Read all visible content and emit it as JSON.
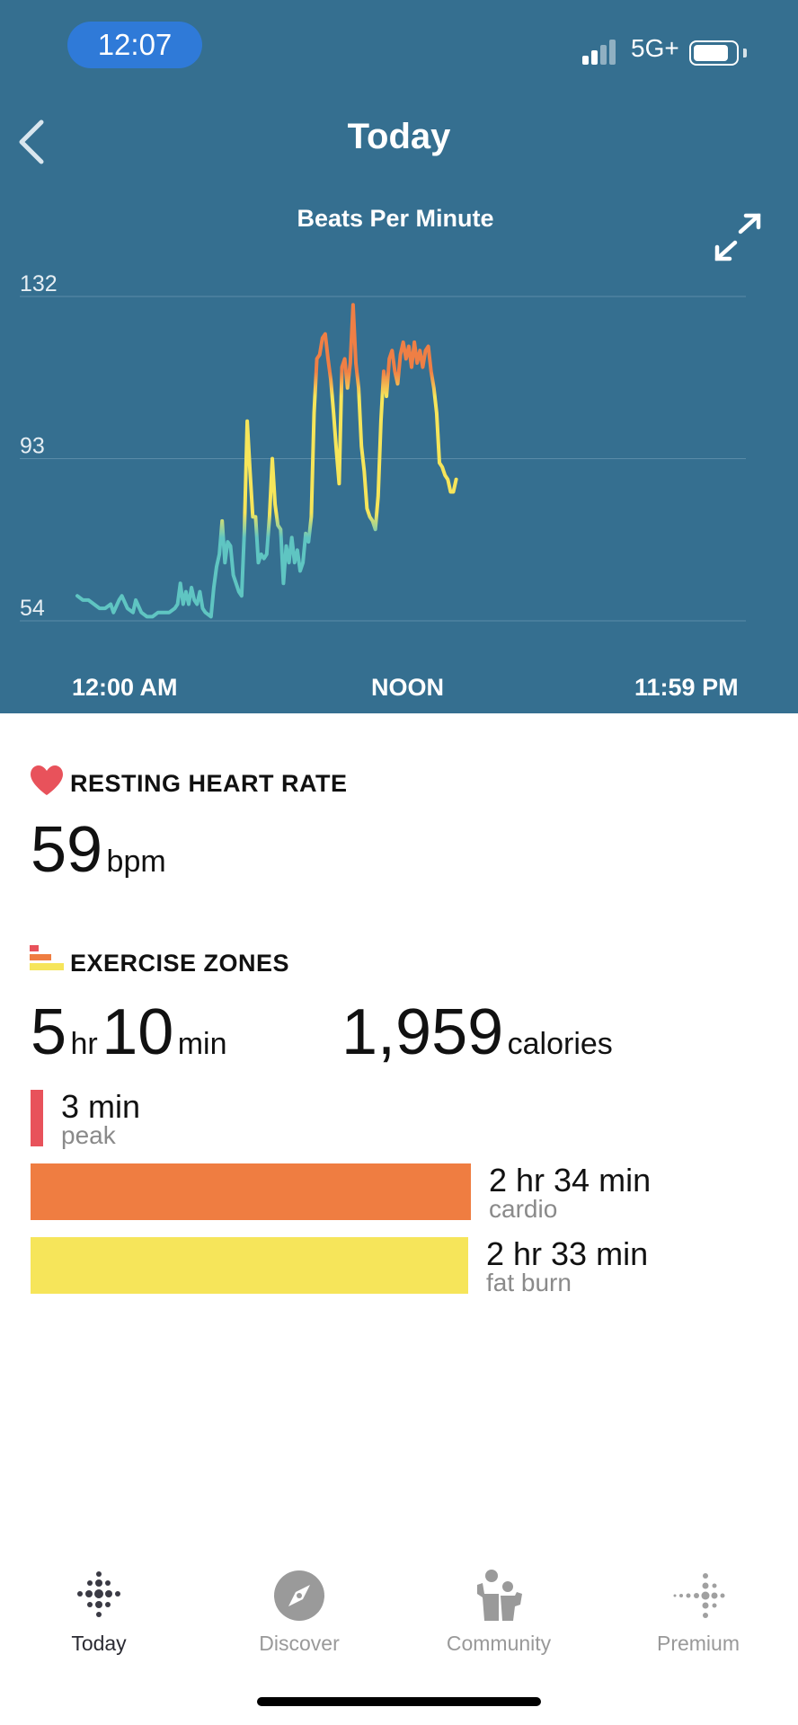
{
  "status_bar": {
    "time": "12:07",
    "network": "5G+"
  },
  "header": {
    "title": "Today"
  },
  "chart_data": {
    "type": "line",
    "title": "Beats Per Minute",
    "x_tick_labels": [
      "12:00 AM",
      "NOON",
      "11:59 PM"
    ],
    "y_ticks": [
      132,
      93,
      54
    ],
    "ylim": [
      54,
      132
    ],
    "x_unit": "hours since 12:00 AM",
    "xlim": [
      0,
      24
    ],
    "grid": true,
    "zone_colors": {
      "resting": "#5fc5c2",
      "fat_burn": "#f6e55a",
      "cardio": "#ef7f45"
    },
    "series": [
      {
        "values": [
          [
            0.0,
            60
          ],
          [
            0.2,
            59
          ],
          [
            0.4,
            59
          ],
          [
            0.6,
            58
          ],
          [
            0.8,
            57
          ],
          [
            1.0,
            57
          ],
          [
            1.2,
            58
          ],
          [
            1.3,
            56
          ],
          [
            1.5,
            59
          ],
          [
            1.6,
            60
          ],
          [
            1.8,
            57
          ],
          [
            2.0,
            56
          ],
          [
            2.1,
            59
          ],
          [
            2.3,
            56
          ],
          [
            2.5,
            55
          ],
          [
            2.7,
            55
          ],
          [
            2.9,
            56
          ],
          [
            3.1,
            56
          ],
          [
            3.3,
            56
          ],
          [
            3.5,
            57
          ],
          [
            3.6,
            58
          ],
          [
            3.7,
            63
          ],
          [
            3.8,
            58
          ],
          [
            3.9,
            61
          ],
          [
            4.0,
            58
          ],
          [
            4.1,
            62
          ],
          [
            4.2,
            59
          ],
          [
            4.3,
            58
          ],
          [
            4.4,
            61
          ],
          [
            4.5,
            57
          ],
          [
            4.6,
            56
          ],
          [
            4.8,
            55
          ],
          [
            4.9,
            62
          ],
          [
            5.0,
            67
          ],
          [
            5.1,
            70
          ],
          [
            5.2,
            78
          ],
          [
            5.3,
            68
          ],
          [
            5.4,
            73
          ],
          [
            5.5,
            72
          ],
          [
            5.6,
            65
          ],
          [
            5.7,
            63
          ],
          [
            5.8,
            61
          ],
          [
            5.9,
            60
          ],
          [
            6.0,
            76
          ],
          [
            6.1,
            102
          ],
          [
            6.2,
            90
          ],
          [
            6.3,
            79
          ],
          [
            6.4,
            79
          ],
          [
            6.5,
            68
          ],
          [
            6.6,
            70
          ],
          [
            6.7,
            69
          ],
          [
            6.8,
            70
          ],
          [
            6.9,
            79
          ],
          [
            7.0,
            93
          ],
          [
            7.1,
            82
          ],
          [
            7.2,
            77
          ],
          [
            7.3,
            76
          ],
          [
            7.4,
            63
          ],
          [
            7.5,
            72
          ],
          [
            7.6,
            68
          ],
          [
            7.7,
            74
          ],
          [
            7.8,
            68
          ],
          [
            7.9,
            71
          ],
          [
            8.0,
            66
          ],
          [
            8.1,
            68
          ],
          [
            8.2,
            75
          ],
          [
            8.3,
            73
          ],
          [
            8.4,
            79
          ],
          [
            8.5,
            104
          ],
          [
            8.6,
            117
          ],
          [
            8.7,
            118
          ],
          [
            8.8,
            122
          ],
          [
            8.9,
            123
          ],
          [
            9.0,
            117
          ],
          [
            9.1,
            112
          ],
          [
            9.2,
            104
          ],
          [
            9.3,
            95
          ],
          [
            9.4,
            87
          ],
          [
            9.5,
            115
          ],
          [
            9.6,
            117
          ],
          [
            9.7,
            110
          ],
          [
            9.8,
            116
          ],
          [
            9.9,
            130
          ],
          [
            10.0,
            116
          ],
          [
            10.1,
            110
          ],
          [
            10.2,
            96
          ],
          [
            10.3,
            90
          ],
          [
            10.4,
            81
          ],
          [
            10.5,
            79
          ],
          [
            10.6,
            78
          ],
          [
            10.7,
            76
          ],
          [
            10.8,
            84
          ],
          [
            10.9,
            102
          ],
          [
            11.0,
            114
          ],
          [
            11.1,
            108
          ],
          [
            11.2,
            117
          ],
          [
            11.3,
            119
          ],
          [
            11.4,
            114
          ],
          [
            11.5,
            111
          ],
          [
            11.6,
            118
          ],
          [
            11.7,
            121
          ],
          [
            11.8,
            117
          ],
          [
            11.9,
            120
          ],
          [
            12.0,
            115
          ],
          [
            12.1,
            121
          ],
          [
            12.2,
            116
          ],
          [
            12.3,
            119
          ],
          [
            12.4,
            115
          ],
          [
            12.5,
            119
          ],
          [
            12.6,
            120
          ],
          [
            12.7,
            114
          ],
          [
            12.8,
            110
          ],
          [
            12.9,
            104
          ],
          [
            13.0,
            92
          ],
          [
            13.1,
            91
          ],
          [
            13.2,
            89
          ],
          [
            13.3,
            88
          ],
          [
            13.4,
            85
          ],
          [
            13.5,
            85
          ],
          [
            13.6,
            88
          ]
        ]
      }
    ]
  },
  "resting_heart_rate": {
    "label": "RESTING HEART RATE",
    "value": "59",
    "unit": "bpm"
  },
  "exercise_zones": {
    "label": "EXERCISE ZONES",
    "duration_hr": "5",
    "hr_unit": "hr",
    "duration_min": "10",
    "min_unit": "min",
    "calories": "1,959",
    "calories_unit": "calories",
    "zones": [
      {
        "time": "3 min",
        "name": "peak",
        "fraction": 0.0,
        "color": "#e8525b"
      },
      {
        "time": "2 hr 34 min",
        "name": "cardio",
        "fraction": 1.0,
        "color": "#ef7d41"
      },
      {
        "time": "2 hr 33 min",
        "name": "fat burn",
        "fraction": 0.994,
        "color": "#f6e55a"
      }
    ]
  },
  "tabs": [
    {
      "label": "Today",
      "icon": "today-dots-icon",
      "active": true
    },
    {
      "label": "Discover",
      "icon": "compass-icon",
      "active": false
    },
    {
      "label": "Community",
      "icon": "community-icon",
      "active": false
    },
    {
      "label": "Premium",
      "icon": "premium-dots-icon",
      "active": false
    }
  ],
  "colors": {
    "header_bg": "#356f90",
    "heart": "#e8525b"
  }
}
